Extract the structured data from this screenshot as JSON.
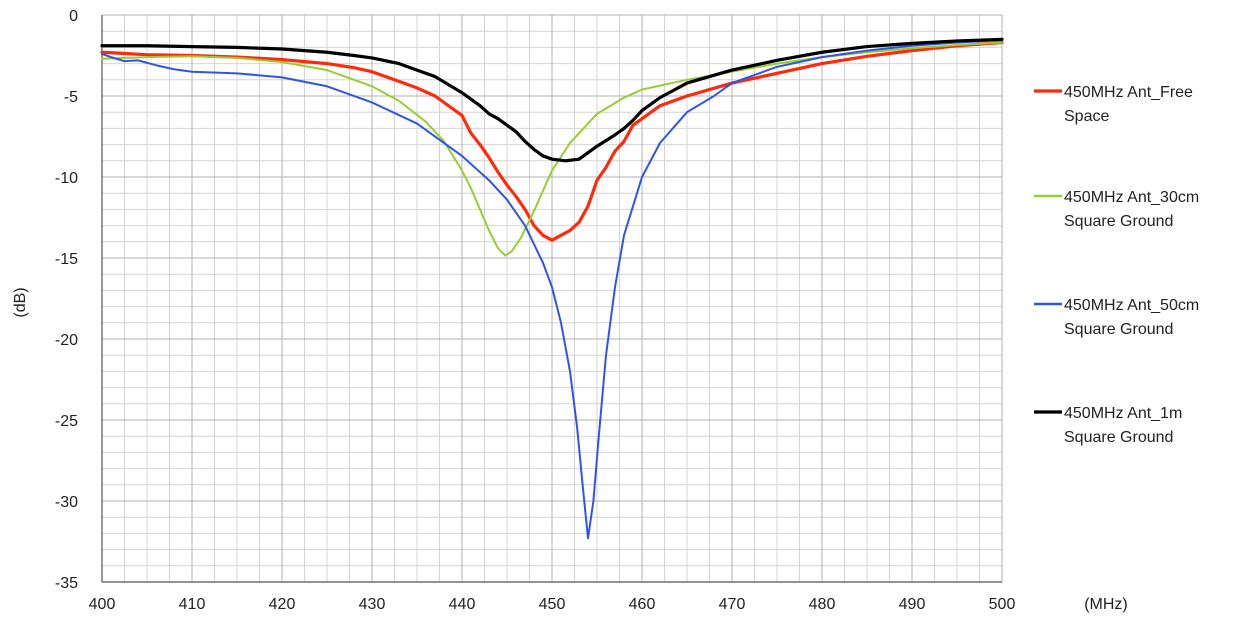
{
  "chart_data": {
    "type": "line",
    "xlabel": "(MHz)",
    "ylabel": "(dB)",
    "xlim": [
      400,
      500
    ],
    "ylim": [
      -35,
      0
    ],
    "xticks": [
      400,
      410,
      420,
      430,
      440,
      450,
      460,
      470,
      480,
      490,
      500
    ],
    "yticks": [
      0,
      -5,
      -10,
      -15,
      -20,
      -25,
      -30,
      -35
    ],
    "x_minor_step": 2.5,
    "y_minor_step": 1,
    "grid": true,
    "legend_position": "right",
    "series": [
      {
        "name": "450MHz Ant_Free Space",
        "color": "#ff2a0a",
        "width": 3.2,
        "points": [
          [
            400,
            -2.3
          ],
          [
            405,
            -2.45
          ],
          [
            410,
            -2.5
          ],
          [
            415,
            -2.6
          ],
          [
            420,
            -2.75
          ],
          [
            425,
            -3.0
          ],
          [
            428,
            -3.25
          ],
          [
            430,
            -3.5
          ],
          [
            432,
            -3.9
          ],
          [
            435,
            -4.5
          ],
          [
            437,
            -5.0
          ],
          [
            440,
            -6.2
          ],
          [
            441,
            -7.3
          ],
          [
            442,
            -8.0
          ],
          [
            443,
            -8.8
          ],
          [
            444,
            -9.7
          ],
          [
            445,
            -10.5
          ],
          [
            446,
            -11.2
          ],
          [
            447,
            -12.0
          ],
          [
            448,
            -13.0
          ],
          [
            449,
            -13.6
          ],
          [
            450,
            -13.9
          ],
          [
            451,
            -13.6
          ],
          [
            452,
            -13.3
          ],
          [
            453,
            -12.8
          ],
          [
            454,
            -11.8
          ],
          [
            455,
            -10.2
          ],
          [
            456,
            -9.4
          ],
          [
            457,
            -8.4
          ],
          [
            458,
            -7.8
          ],
          [
            459,
            -6.8
          ],
          [
            460,
            -6.4
          ],
          [
            462,
            -5.6
          ],
          [
            465,
            -5.0
          ],
          [
            470,
            -4.2
          ],
          [
            475,
            -3.6
          ],
          [
            480,
            -3.0
          ],
          [
            485,
            -2.55
          ],
          [
            490,
            -2.2
          ],
          [
            495,
            -1.9
          ],
          [
            500,
            -1.7
          ]
        ]
      },
      {
        "name": "450MHz Ant_30cm Square Ground",
        "color": "#99cc33",
        "width": 2,
        "points": [
          [
            400,
            -2.7
          ],
          [
            405,
            -2.6
          ],
          [
            410,
            -2.55
          ],
          [
            415,
            -2.65
          ],
          [
            420,
            -2.9
          ],
          [
            425,
            -3.4
          ],
          [
            430,
            -4.4
          ],
          [
            433,
            -5.3
          ],
          [
            436,
            -6.6
          ],
          [
            438,
            -7.8
          ],
          [
            440,
            -9.6
          ],
          [
            441,
            -10.7
          ],
          [
            442,
            -12.0
          ],
          [
            443,
            -13.3
          ],
          [
            444,
            -14.4
          ],
          [
            444.8,
            -14.85
          ],
          [
            445.5,
            -14.6
          ],
          [
            446.5,
            -13.8
          ],
          [
            448,
            -12.1
          ],
          [
            450,
            -9.6
          ],
          [
            452,
            -7.9
          ],
          [
            455,
            -6.1
          ],
          [
            458,
            -5.1
          ],
          [
            460,
            -4.6
          ],
          [
            465,
            -4.0
          ],
          [
            470,
            -3.5
          ],
          [
            475,
            -3.0
          ],
          [
            480,
            -2.6
          ],
          [
            485,
            -2.3
          ],
          [
            490,
            -2.05
          ],
          [
            495,
            -1.85
          ],
          [
            500,
            -1.7
          ]
        ]
      },
      {
        "name": "450MHz Ant_50cm Square Ground",
        "color": "#2f55e8",
        "width": 2,
        "points": [
          [
            400,
            -2.4
          ],
          [
            401,
            -2.6
          ],
          [
            402.5,
            -2.85
          ],
          [
            404,
            -2.8
          ],
          [
            406,
            -3.1
          ],
          [
            408,
            -3.35
          ],
          [
            410,
            -3.5
          ],
          [
            415,
            -3.6
          ],
          [
            420,
            -3.85
          ],
          [
            425,
            -4.4
          ],
          [
            430,
            -5.4
          ],
          [
            435,
            -6.7
          ],
          [
            440,
            -8.7
          ],
          [
            443,
            -10.2
          ],
          [
            445,
            -11.4
          ],
          [
            447,
            -13.0
          ],
          [
            449,
            -15.3
          ],
          [
            450,
            -16.8
          ],
          [
            451,
            -19.0
          ],
          [
            452,
            -22.0
          ],
          [
            452.8,
            -25.5
          ],
          [
            453.4,
            -29.0
          ],
          [
            454,
            -32.3
          ],
          [
            454.6,
            -30.0
          ],
          [
            455.2,
            -26.0
          ],
          [
            456,
            -21.0
          ],
          [
            457,
            -16.8
          ],
          [
            458,
            -13.6
          ],
          [
            460,
            -10.0
          ],
          [
            462,
            -7.9
          ],
          [
            465,
            -6.0
          ],
          [
            468,
            -5.0
          ],
          [
            470,
            -4.2
          ],
          [
            475,
            -3.2
          ],
          [
            480,
            -2.6
          ],
          [
            485,
            -2.2
          ],
          [
            490,
            -1.9
          ],
          [
            495,
            -1.7
          ],
          [
            500,
            -1.55
          ]
        ]
      },
      {
        "name": "450MHz Ant_1m Square Ground",
        "color": "#000000",
        "width": 3.2,
        "points": [
          [
            400,
            -1.9
          ],
          [
            405,
            -1.9
          ],
          [
            410,
            -1.95
          ],
          [
            415,
            -2.0
          ],
          [
            420,
            -2.1
          ],
          [
            425,
            -2.3
          ],
          [
            428,
            -2.5
          ],
          [
            430,
            -2.65
          ],
          [
            433,
            -3.0
          ],
          [
            435,
            -3.4
          ],
          [
            437,
            -3.8
          ],
          [
            440,
            -4.8
          ],
          [
            442,
            -5.6
          ],
          [
            443,
            -6.1
          ],
          [
            444,
            -6.4
          ],
          [
            445,
            -6.8
          ],
          [
            446,
            -7.2
          ],
          [
            447,
            -7.8
          ],
          [
            448,
            -8.3
          ],
          [
            449,
            -8.7
          ],
          [
            450,
            -8.9
          ],
          [
            451.5,
            -9.0
          ],
          [
            453,
            -8.9
          ],
          [
            454,
            -8.5
          ],
          [
            455,
            -8.1
          ],
          [
            457,
            -7.4
          ],
          [
            458,
            -7.0
          ],
          [
            459,
            -6.5
          ],
          [
            460,
            -5.9
          ],
          [
            462,
            -5.1
          ],
          [
            465,
            -4.2
          ],
          [
            470,
            -3.4
          ],
          [
            475,
            -2.8
          ],
          [
            480,
            -2.3
          ],
          [
            485,
            -1.95
          ],
          [
            490,
            -1.75
          ],
          [
            495,
            -1.6
          ],
          [
            500,
            -1.5
          ]
        ]
      }
    ],
    "legend": [
      {
        "line1": "450MHz Ant_Free",
        "line2": "Space"
      },
      {
        "line1": "450MHz Ant_30cm",
        "line2": "Square Ground"
      },
      {
        "line1": "450MHz Ant_50cm",
        "line2": "Square Ground"
      },
      {
        "line1": "450MHz Ant_1m",
        "line2": "Square Ground"
      }
    ]
  }
}
